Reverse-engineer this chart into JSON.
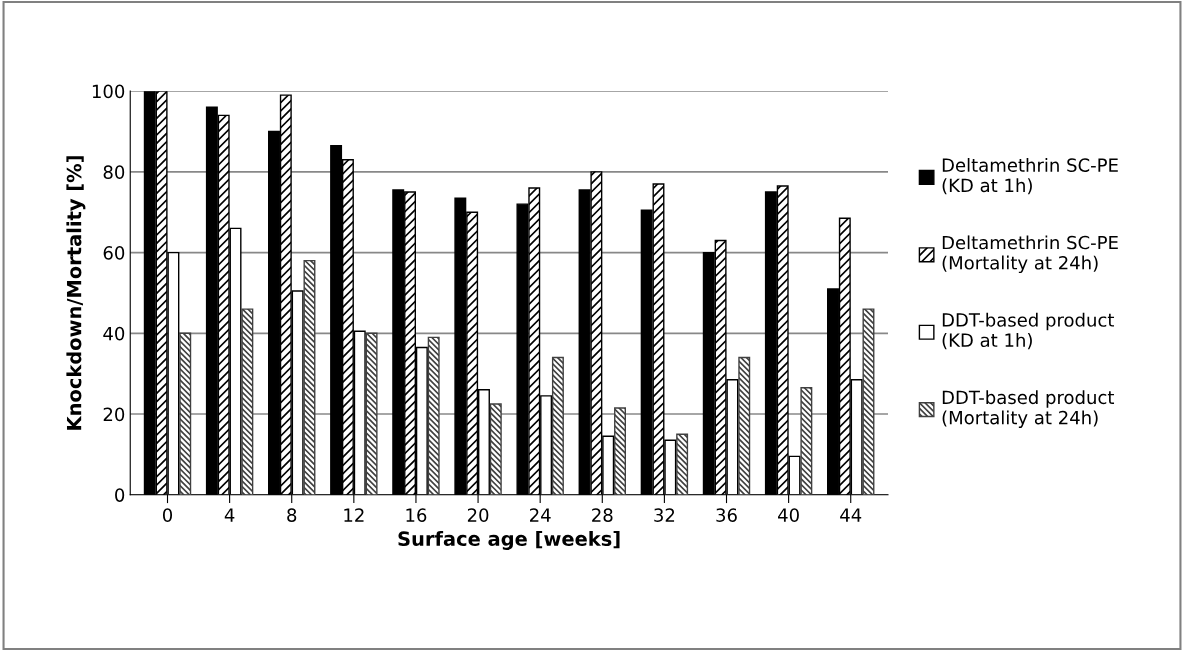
{
  "chart_data": {
    "type": "bar",
    "xlabel": "Surface age [weeks]",
    "ylabel": "Knockdown/Mortality [%]",
    "categories": [
      "0",
      "4",
      "8",
      "12",
      "16",
      "20",
      "24",
      "28",
      "32",
      "36",
      "40",
      "44"
    ],
    "series": [
      {
        "name": "Deltamethrin SC-PE\n(KD at 1h)",
        "color": "#000000",
        "values": [
          100,
          96,
          90,
          86.5,
          75.5,
          73.5,
          72,
          75.5,
          70.5,
          60,
          75,
          51
        ]
      },
      {
        "name": "Deltamethrin SC-PE\n(Mortality at 24h)",
        "color": "#000000",
        "values": [
          100,
          94,
          99,
          83,
          75,
          70,
          76,
          80,
          77,
          63,
          76.5,
          68.5
        ]
      },
      {
        "name": "DDT-based product\n(KD at 1h)",
        "color": "#ffffff",
        "values": [
          60,
          66,
          50.5,
          40.5,
          36.5,
          26,
          24.5,
          14.5,
          13.5,
          28.5,
          9.5,
          28.5
        ]
      },
      {
        "name": "DDT-based product\n(Mortality at 24h)",
        "color": "#404040",
        "values": [
          40,
          46,
          58,
          40,
          39,
          22.5,
          34,
          21.5,
          15,
          34,
          26.5,
          46
        ]
      }
    ],
    "ylim": [
      0,
      100
    ],
    "yticks": [
      0,
      20,
      40,
      60,
      80,
      100
    ],
    "grid": "y",
    "legend": "right"
  }
}
